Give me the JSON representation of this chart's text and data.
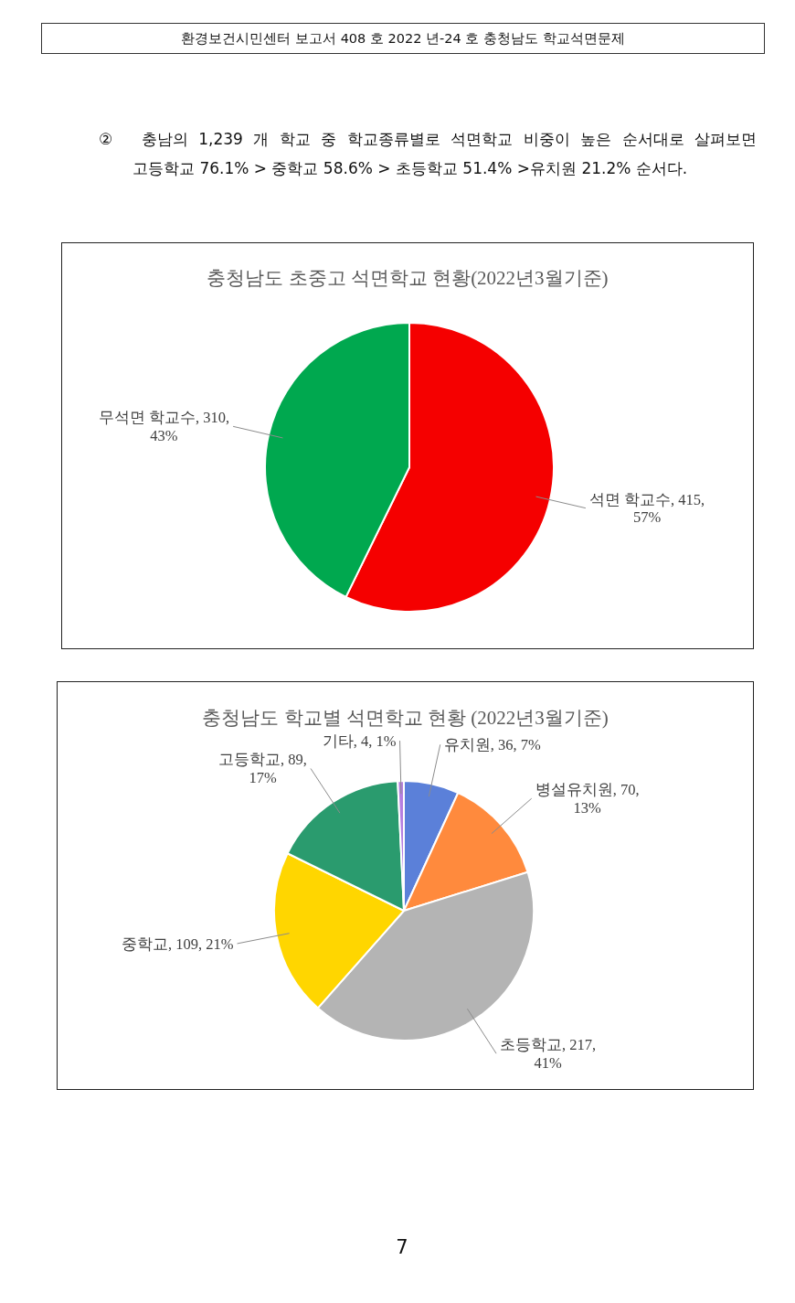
{
  "chart_data": [
    {
      "type": "pie",
      "title": "충청남도 초중고 석면학교 현황(2022년3월기준)",
      "categories": [
        "석면 학교수",
        "무석면 학교수"
      ],
      "values": [
        415,
        310
      ],
      "colors": [
        "#f50000",
        "#00a84f"
      ],
      "value_labels": [
        "415, 57%",
        "310, 43%"
      ],
      "annotations": [
        "환경보건시민센터 보고서 408 호 2022 년-24 호 충청남도 학교석면문제",
        "② 충남의 1,239 개 학교 중 학교종류별로 석면학교 비중이 높은 순서대로 살펴보면 고등학교 76.1% > 중학교 58.6% > 초등학교 51.4% >유치원 21.2% 순서다."
      ]
    },
    {
      "type": "pie",
      "title": "충청남도 학교별 석면학교 현황 (2022년3월기준)",
      "categories": [
        "유치원",
        "병설유치원",
        "초등학교",
        "중학교",
        "고등학교",
        "기타"
      ],
      "values": [
        36,
        70,
        217,
        109,
        89,
        4
      ],
      "colors": [
        "#5b80d9",
        "#ff8a3d",
        "#b4b4b4",
        "#ffd600",
        "#2a9b6e",
        "#b57fe0"
      ],
      "value_labels": [
        "36, 7%",
        "70, 13%",
        "217, 41%",
        "109, 21%",
        "89, 17%",
        "4, 1%"
      ],
      "annotations": [
        "7"
      ]
    }
  ]
}
